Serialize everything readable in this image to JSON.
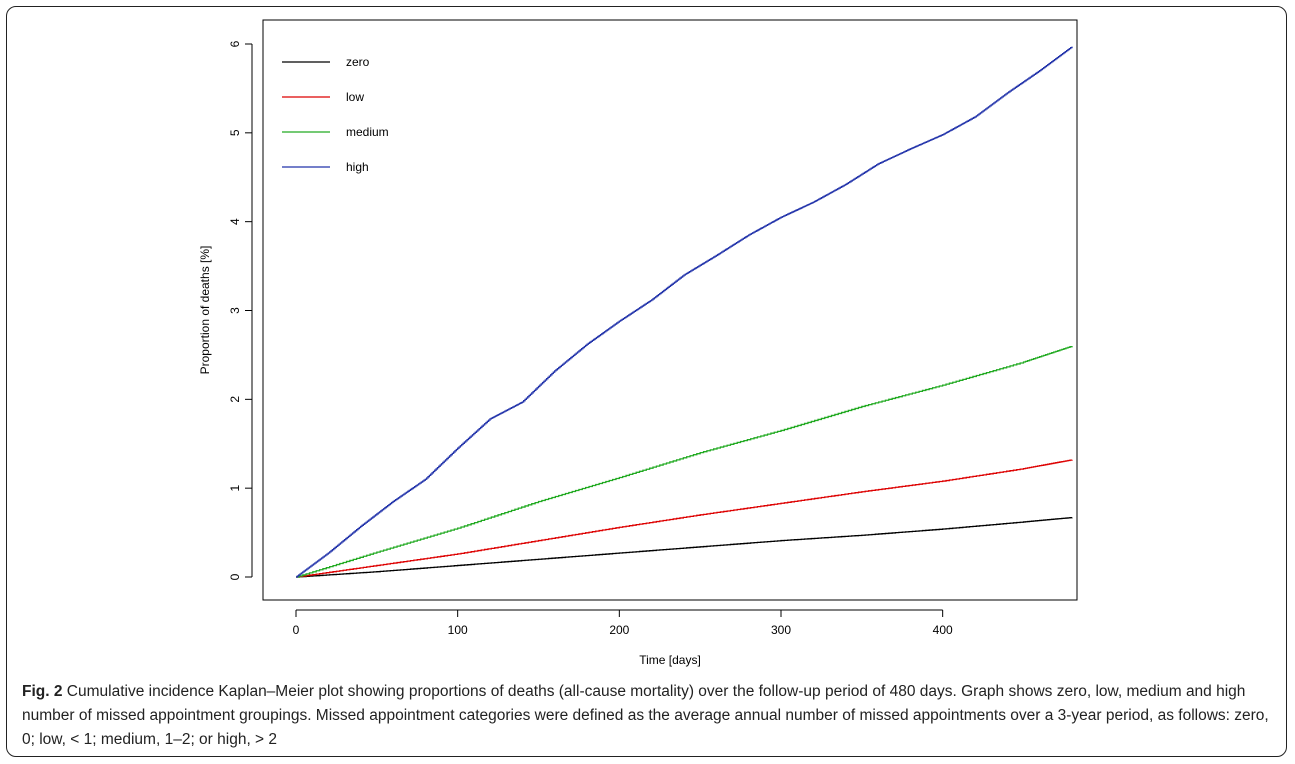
{
  "chart_data": {
    "type": "line",
    "xlabel": "Time [days]",
    "ylabel": "Proportion of deaths [%]",
    "xlim": [
      0,
      480
    ],
    "ylim": [
      0,
      6
    ],
    "xticks": [
      0,
      100,
      200,
      300,
      400
    ],
    "yticks": [
      0,
      1,
      2,
      3,
      4,
      5,
      6
    ],
    "grid": false,
    "legend_position": "top-left",
    "series": [
      {
        "name": "zero",
        "color": "#000000",
        "x": [
          0,
          50,
          100,
          150,
          200,
          250,
          300,
          350,
          400,
          450,
          480
        ],
        "y": [
          0,
          0.06,
          0.13,
          0.2,
          0.27,
          0.34,
          0.41,
          0.47,
          0.54,
          0.62,
          0.67
        ]
      },
      {
        "name": "low",
        "color": "#dd0000",
        "x": [
          0,
          50,
          100,
          150,
          200,
          250,
          300,
          350,
          400,
          450,
          480
        ],
        "y": [
          0,
          0.13,
          0.26,
          0.41,
          0.56,
          0.7,
          0.83,
          0.96,
          1.08,
          1.22,
          1.32
        ]
      },
      {
        "name": "medium",
        "color": "#22aa22",
        "x": [
          0,
          50,
          100,
          150,
          200,
          250,
          300,
          350,
          400,
          450,
          480
        ],
        "y": [
          0,
          0.28,
          0.55,
          0.85,
          1.12,
          1.4,
          1.65,
          1.92,
          2.16,
          2.42,
          2.6
        ]
      },
      {
        "name": "high",
        "color": "#2233aa",
        "x": [
          0,
          20,
          40,
          60,
          80,
          100,
          120,
          140,
          160,
          180,
          200,
          220,
          240,
          260,
          280,
          300,
          320,
          340,
          360,
          380,
          400,
          420,
          440,
          460,
          480
        ],
        "y": [
          0,
          0.27,
          0.57,
          0.85,
          1.1,
          1.45,
          1.78,
          1.97,
          2.32,
          2.62,
          2.88,
          3.12,
          3.4,
          3.62,
          3.85,
          4.05,
          4.22,
          4.42,
          4.65,
          4.82,
          4.98,
          5.18,
          5.45,
          5.7,
          5.97
        ]
      }
    ]
  },
  "caption": {
    "label": "Fig. 2",
    "text": " Cumulative incidence Kaplan–Meier plot showing proportions of deaths (all-cause mortality) over the follow-up period of 480 days. Graph shows zero, low, medium and high number of missed appointment groupings. Missed appointment categories were defined as the average annual number of missed appointments over a 3-year period, as follows: zero, 0; low, < 1; medium, 1–2; or high, > 2"
  }
}
